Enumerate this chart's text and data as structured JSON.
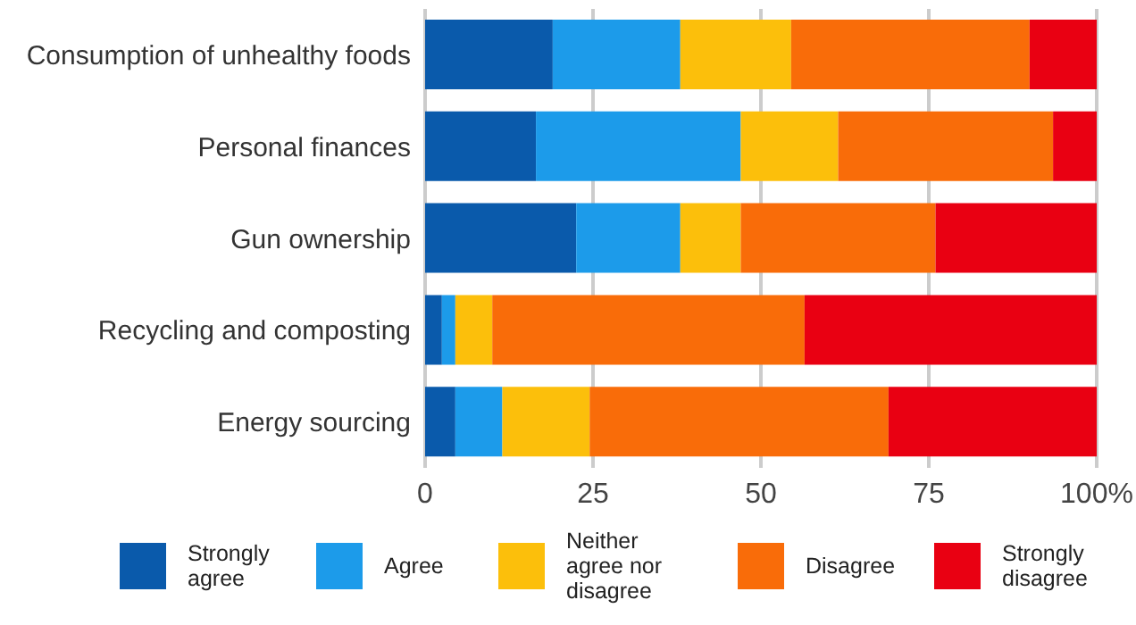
{
  "chart_data": {
    "type": "bar",
    "orientation": "horizontal",
    "stacked": true,
    "categories": [
      "Consumption of unhealthy foods",
      "Personal finances",
      "Gun ownership",
      "Recycling and composting",
      "Energy sourcing"
    ],
    "series": [
      {
        "name": "Strongly agree",
        "color": "#0a5aab",
        "values": [
          19,
          16.5,
          22.5,
          2.5,
          4.5
        ]
      },
      {
        "name": "Agree",
        "color": "#1c9bea",
        "values": [
          19,
          30.5,
          15.5,
          2,
          7
        ]
      },
      {
        "name": "Neither agree nor disagree",
        "color": "#fcbf0b",
        "values": [
          16.5,
          14.5,
          9,
          5.5,
          13
        ]
      },
      {
        "name": "Disagree",
        "color": "#f96c09",
        "values": [
          35.5,
          32,
          29,
          46.5,
          44.5
        ]
      },
      {
        "name": "Strongly disagree",
        "color": "#e90012",
        "values": [
          10,
          6.5,
          24,
          43.5,
          31
        ]
      }
    ],
    "xlim": [
      0,
      100
    ],
    "xticks": [
      0,
      25,
      50,
      75,
      {
        "value": 100,
        "label": "100%"
      }
    ],
    "grid": "x",
    "legend": "bottom"
  }
}
